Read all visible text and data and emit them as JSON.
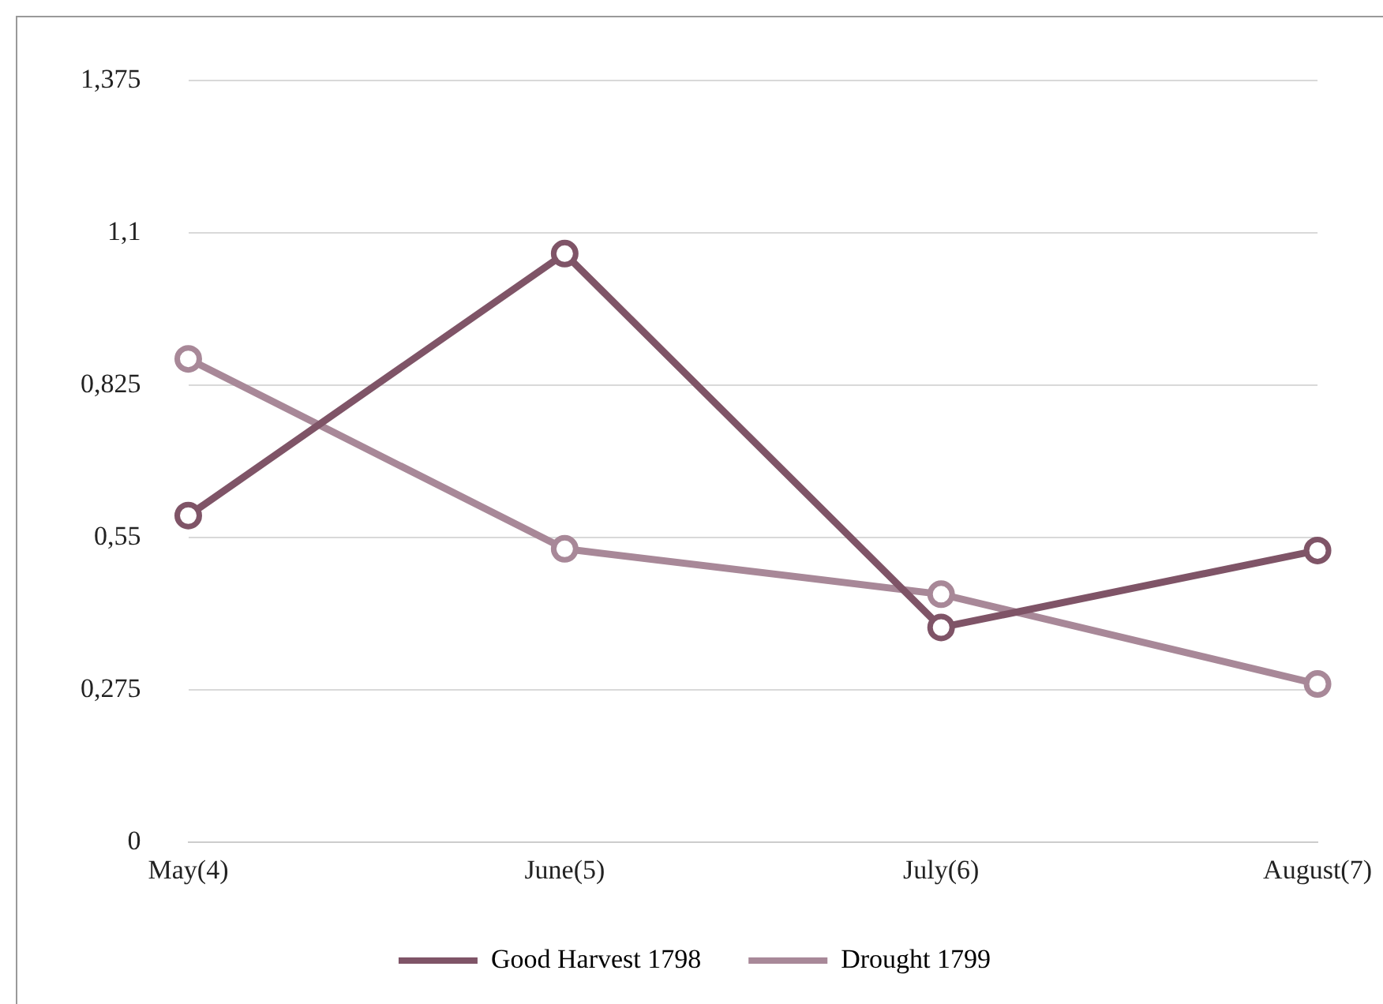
{
  "chart_data": {
    "type": "line",
    "categories": [
      "May(4)",
      "June(5)",
      "July(6)",
      "August(7)"
    ],
    "series": [
      {
        "name": "Good Harvest 1798",
        "color": "#7f5467",
        "values": [
          0.59,
          1.063,
          0.388,
          0.527
        ]
      },
      {
        "name": "Drought 1799",
        "color": "#a88898",
        "values": [
          0.873,
          0.53,
          0.448,
          0.286
        ]
      }
    ],
    "ylim": [
      0,
      1.375
    ],
    "yticks": [
      {
        "value": 0,
        "label": "0"
      },
      {
        "value": 0.275,
        "label": "0,275"
      },
      {
        "value": 0.55,
        "label": "0,55"
      },
      {
        "value": 0.825,
        "label": "0,825"
      },
      {
        "value": 1.1,
        "label": "1,1"
      },
      {
        "value": 1.375,
        "label": "1,375"
      }
    ],
    "grid": "y",
    "legend": "bottom",
    "marker": "circle",
    "line_style": "solid"
  }
}
